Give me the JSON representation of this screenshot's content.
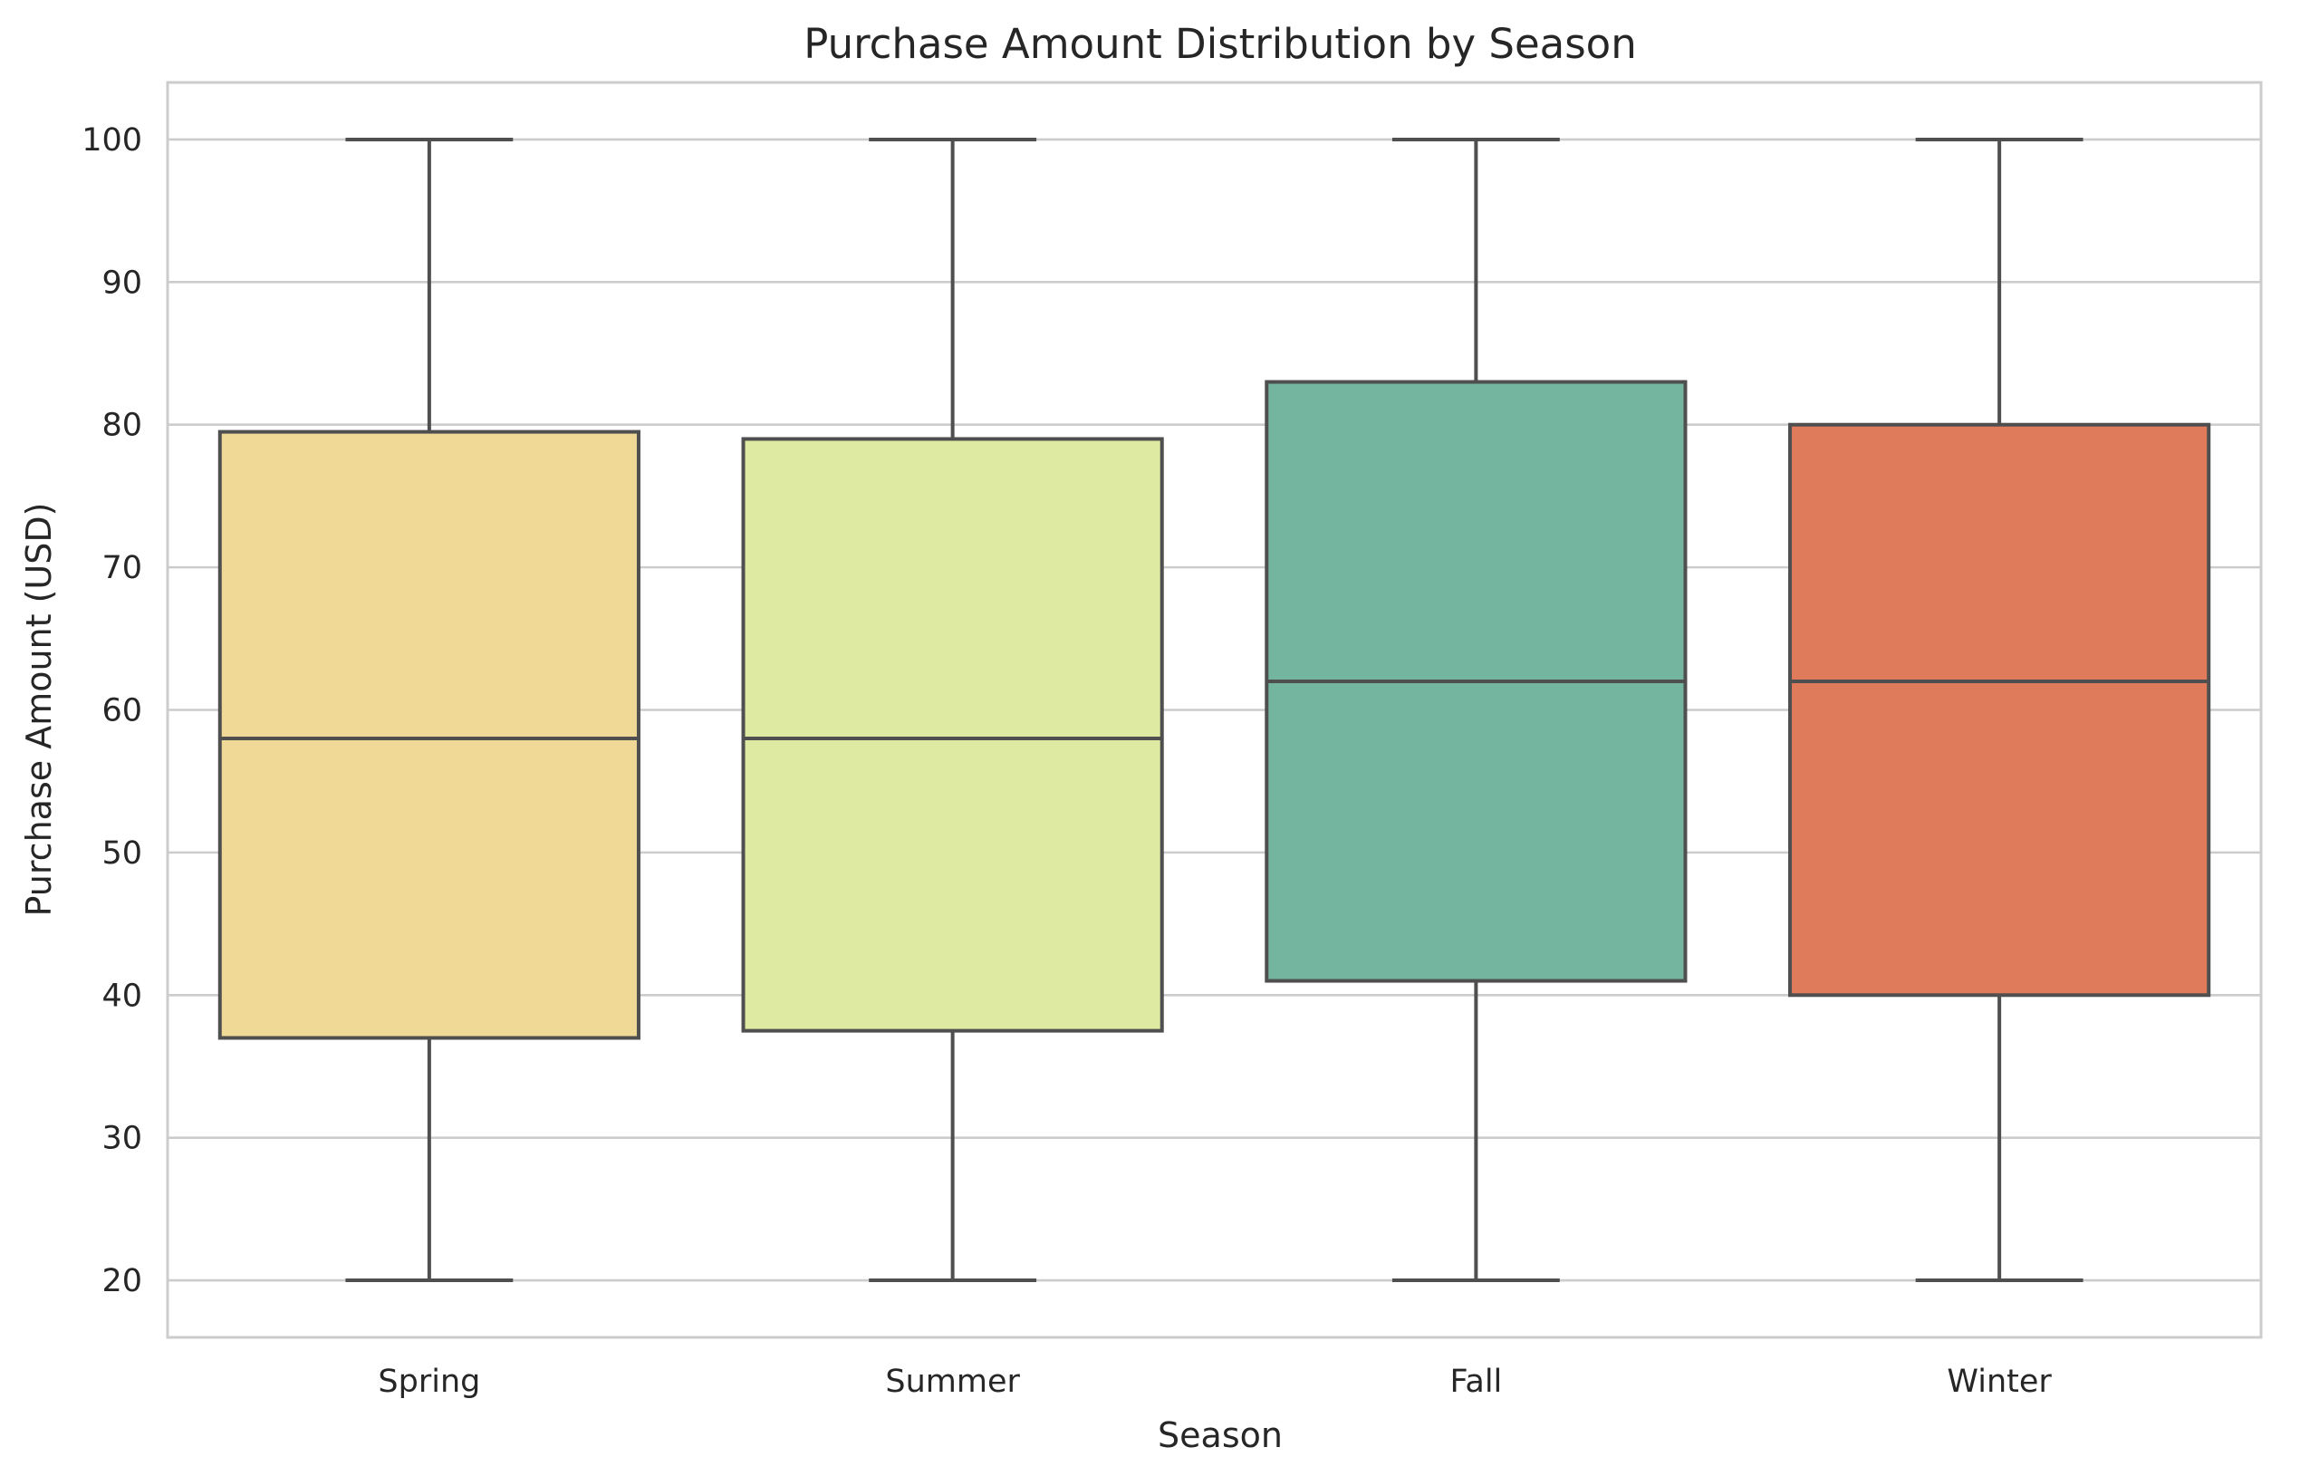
{
  "chart_data": {
    "type": "box",
    "title": "Purchase Amount Distribution by Season",
    "xlabel": "Season",
    "ylabel": "Purchase Amount (USD)",
    "ylim": [
      16,
      104
    ],
    "yticks": [
      20,
      30,
      40,
      50,
      60,
      70,
      80,
      90,
      100
    ],
    "grid": true,
    "categories": [
      "Spring",
      "Summer",
      "Fall",
      "Winter"
    ],
    "boxes": [
      {
        "category": "Spring",
        "min": 20,
        "q1": 37,
        "median": 58,
        "q3": 79.5,
        "max": 100,
        "color": "#f0d896"
      },
      {
        "category": "Summer",
        "min": 20,
        "q1": 37.5,
        "median": 58,
        "q3": 79,
        "max": 100,
        "color": "#dee9a2"
      },
      {
        "category": "Fall",
        "min": 20,
        "q1": 41,
        "median": 62,
        "q3": 83,
        "max": 100,
        "color": "#74b5a0"
      },
      {
        "category": "Winter",
        "min": 20,
        "q1": 40,
        "median": 62,
        "q3": 80,
        "max": 100,
        "color": "#df7a5b"
      }
    ]
  }
}
